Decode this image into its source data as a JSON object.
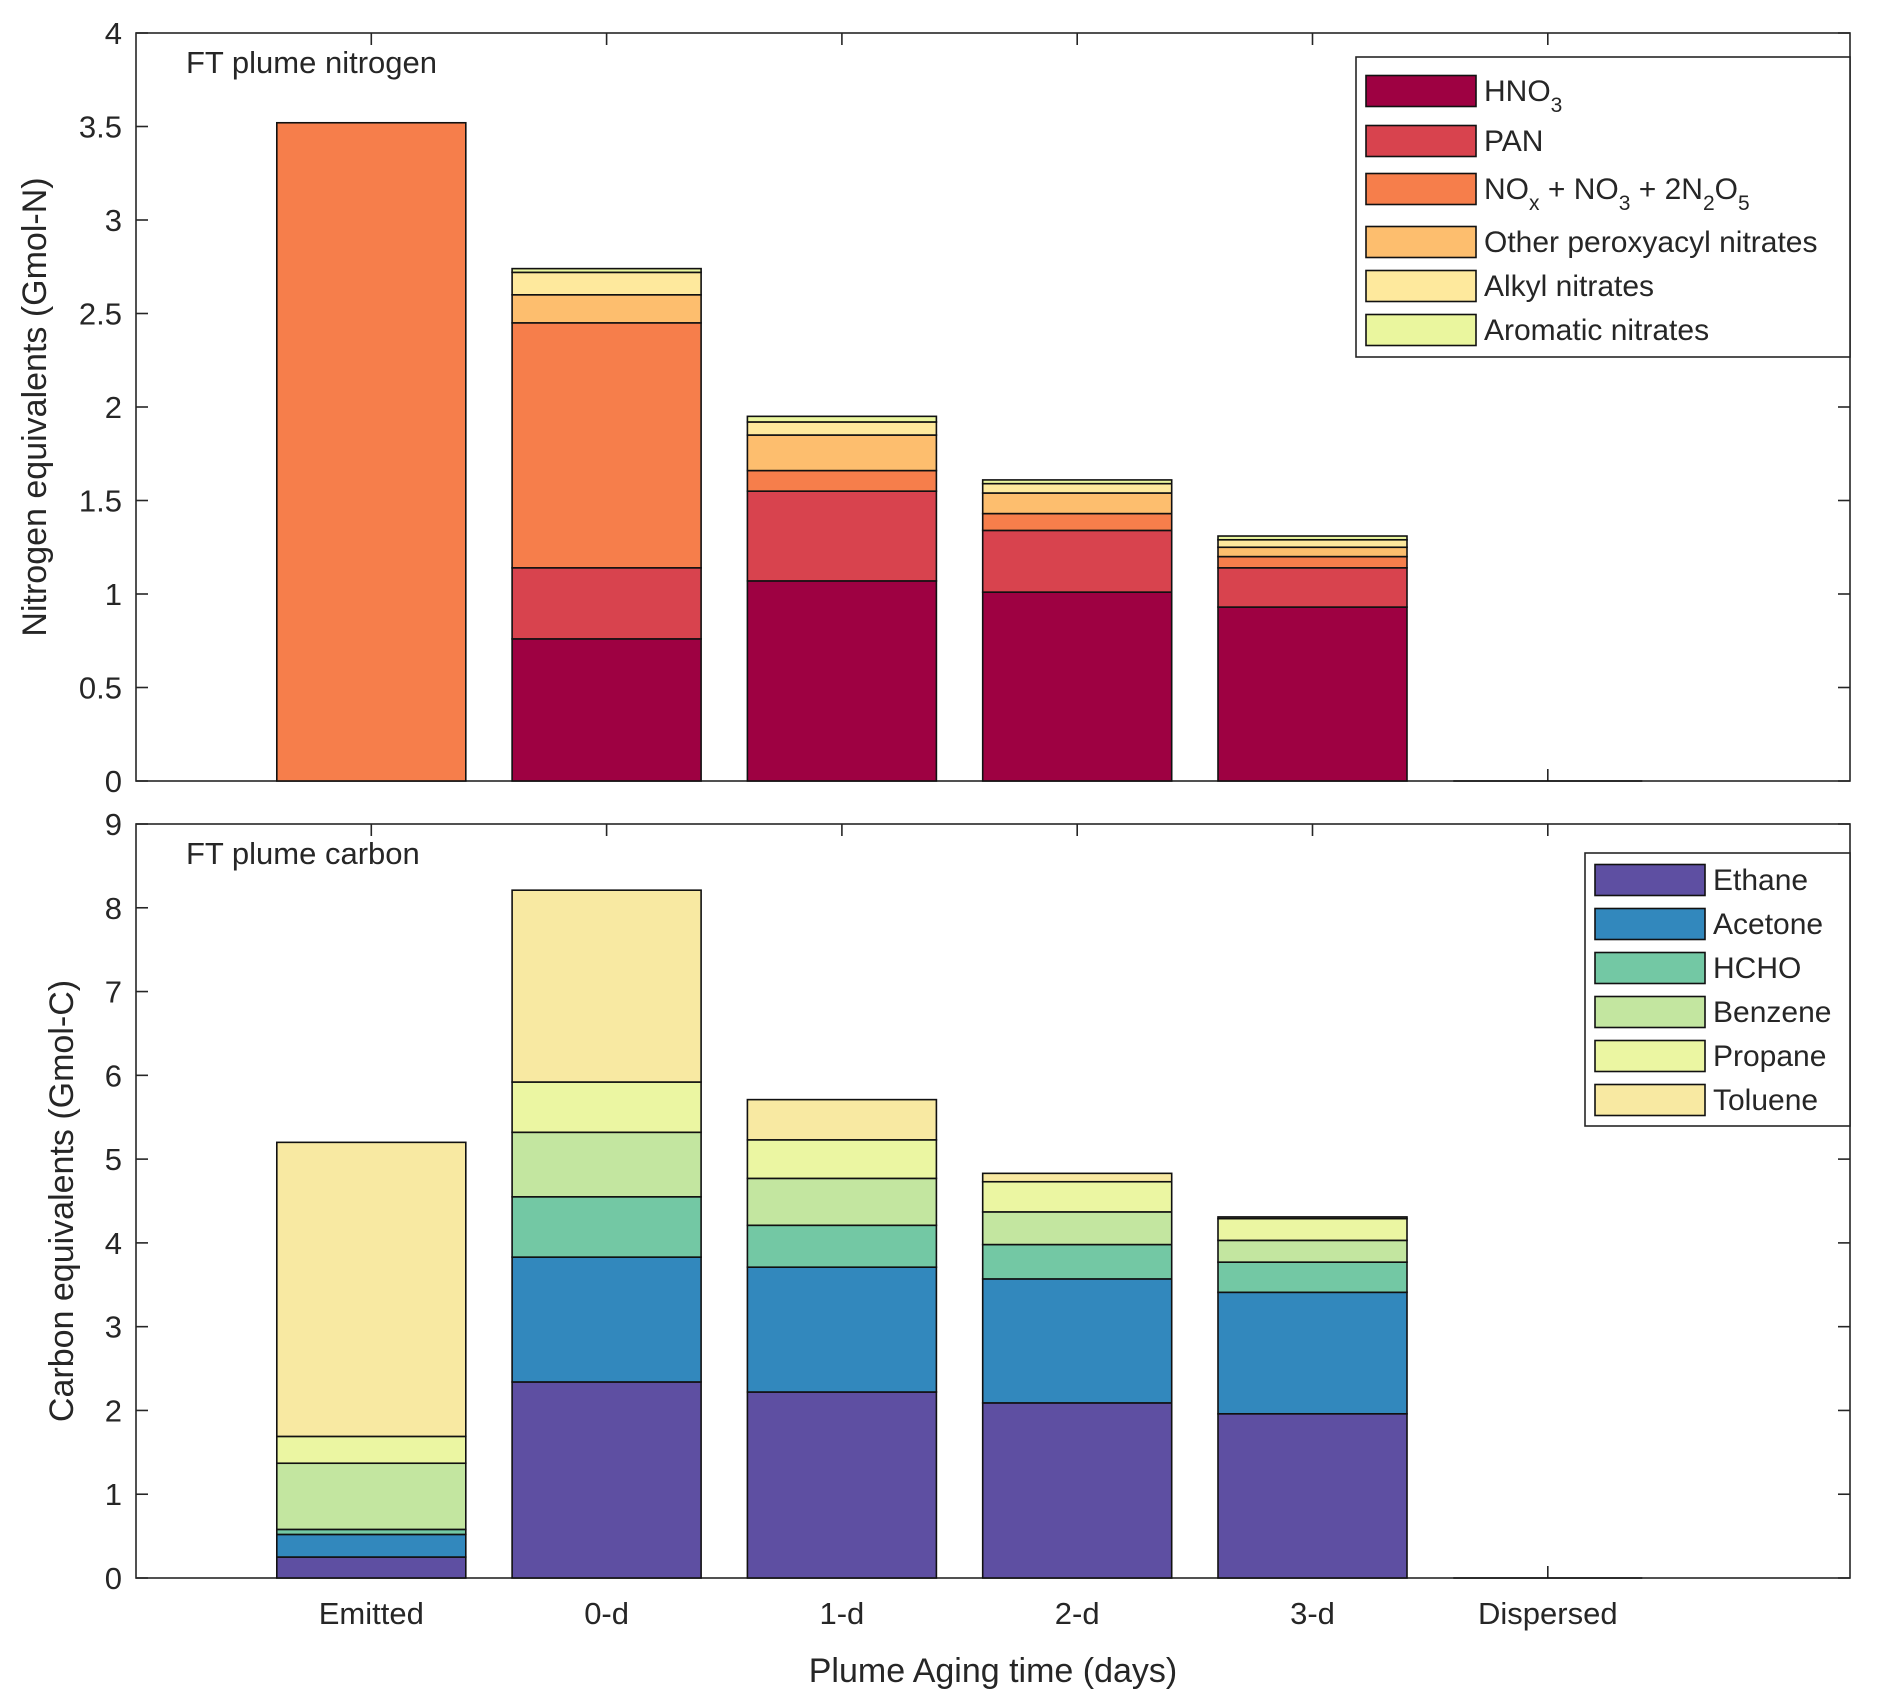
{
  "chart_data": [
    {
      "type": "bar",
      "stacked": true,
      "title": "FT plume nitrogen",
      "xlabel": "",
      "ylabel": "Nitrogen equivalents (Gmol-N)",
      "ylim": [
        0,
        4
      ],
      "yticks": [
        0,
        0.5,
        1,
        1.5,
        2,
        2.5,
        3,
        3.5,
        4
      ],
      "ytick_labels": [
        "0",
        "0.5",
        "1",
        "1.5",
        "2",
        "2.5",
        "3",
        "3.5",
        "4"
      ],
      "categories": [
        "Emitted",
        "0-d",
        "1-d",
        "2-d",
        "3-d",
        "Dispersed"
      ],
      "grid": false,
      "legend_position": "top-right",
      "series": [
        {
          "name": "HNO3",
          "label_parts": [
            {
              "t": "HNO"
            },
            {
              "t": "3",
              "sub": true
            }
          ],
          "color": "#9e0142",
          "values": [
            0,
            0.76,
            1.07,
            1.01,
            0.93,
            0
          ]
        },
        {
          "name": "PAN",
          "label_parts": [
            {
              "t": "PAN"
            }
          ],
          "color": "#d8434e",
          "values": [
            0,
            0.38,
            0.48,
            0.33,
            0.21,
            0
          ]
        },
        {
          "name": "NOx + NO3 + 2N2O5",
          "label_parts": [
            {
              "t": "NO"
            },
            {
              "t": "x",
              "sub": true
            },
            {
              "t": " + NO"
            },
            {
              "t": "3",
              "sub": true
            },
            {
              "t": " + 2N"
            },
            {
              "t": "2",
              "sub": true
            },
            {
              "t": "O"
            },
            {
              "t": "5",
              "sub": true
            }
          ],
          "color": "#f67e4b",
          "values": [
            3.52,
            1.31,
            0.11,
            0.09,
            0.06,
            0
          ]
        },
        {
          "name": "Other peroxyacyl nitrates",
          "label_parts": [
            {
              "t": "Other peroxyacyl nitrates"
            }
          ],
          "color": "#fdbe6e",
          "values": [
            0,
            0.15,
            0.19,
            0.11,
            0.05,
            0
          ]
        },
        {
          "name": "Alkyl nitrates",
          "label_parts": [
            {
              "t": "Alkyl nitrates"
            }
          ],
          "color": "#fee99d",
          "values": [
            0,
            0.12,
            0.07,
            0.05,
            0.04,
            0
          ]
        },
        {
          "name": "Aromatic nitrates",
          "label_parts": [
            {
              "t": "Aromatic nitrates"
            }
          ],
          "color": "#eaf69e",
          "values": [
            0,
            0.02,
            0.03,
            0.02,
            0.02,
            0
          ]
        }
      ]
    },
    {
      "type": "bar",
      "stacked": true,
      "title": "FT plume carbon",
      "xlabel": "Plume Aging time (days)",
      "ylabel": "Carbon equivalents (Gmol-C)",
      "ylim": [
        0,
        9
      ],
      "yticks": [
        0,
        1,
        2,
        3,
        4,
        5,
        6,
        7,
        8,
        9
      ],
      "ytick_labels": [
        "0",
        "1",
        "2",
        "3",
        "4",
        "5",
        "6",
        "7",
        "8",
        "9"
      ],
      "categories": [
        "Emitted",
        "0-d",
        "1-d",
        "2-d",
        "3-d",
        "Dispersed"
      ],
      "grid": false,
      "legend_position": "top-right",
      "series": [
        {
          "name": "Ethane",
          "label_parts": [
            {
              "t": "Ethane"
            }
          ],
          "color": "#5e4fa2",
          "values": [
            0.25,
            2.34,
            2.22,
            2.09,
            1.96,
            0
          ]
        },
        {
          "name": "Acetone",
          "label_parts": [
            {
              "t": "Acetone"
            }
          ],
          "color": "#3288bd",
          "values": [
            0.27,
            1.49,
            1.49,
            1.48,
            1.45,
            0
          ]
        },
        {
          "name": "HCHO",
          "label_parts": [
            {
              "t": "HCHO"
            }
          ],
          "color": "#73c8a4",
          "values": [
            0.06,
            0.72,
            0.5,
            0.41,
            0.36,
            0
          ]
        },
        {
          "name": "Benzene",
          "label_parts": [
            {
              "t": "Benzene"
            }
          ],
          "color": "#c3e6a0",
          "values": [
            0.79,
            0.77,
            0.56,
            0.39,
            0.26,
            0
          ]
        },
        {
          "name": "Propane",
          "label_parts": [
            {
              "t": "Propane"
            }
          ],
          "color": "#ebf6a2",
          "values": [
            0.32,
            0.6,
            0.46,
            0.36,
            0.26,
            0
          ]
        },
        {
          "name": "Toluene",
          "label_parts": [
            {
              "t": "Toluene"
            }
          ],
          "color": "#f8e9a2",
          "values": [
            3.51,
            2.29,
            0.48,
            0.1,
            0.02,
            0
          ]
        }
      ]
    }
  ]
}
